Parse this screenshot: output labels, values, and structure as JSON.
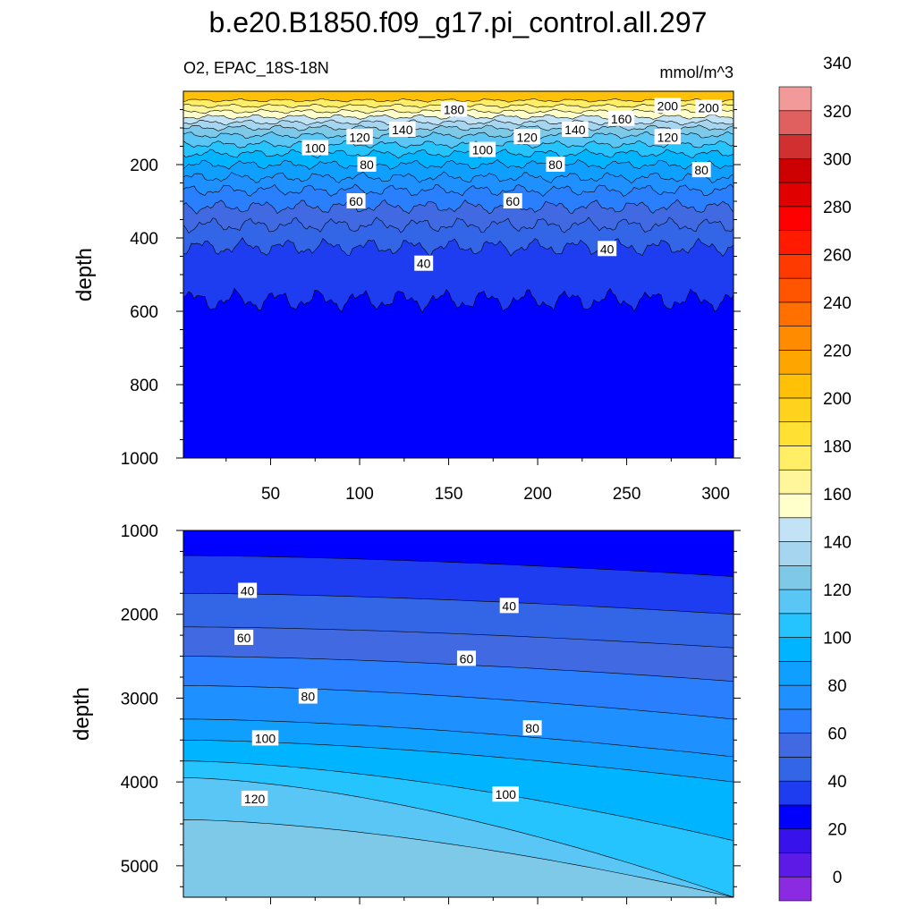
{
  "figure": {
    "title": "b.e20.B1850.f09_g17.pi_control.all.297",
    "left_string": "O2, EPAC_18S-18N",
    "right_string": "mmol/m^3"
  },
  "colorbar": {
    "colors": [
      "#8a2be2",
      "#5c1ae6",
      "#3712ea",
      "#0000ff",
      "#1e3cf0",
      "#3366e6",
      "#4169e1",
      "#2a7fff",
      "#1e90ff",
      "#0fa0ff",
      "#00b4ff",
      "#25c4ff",
      "#5ac6f5",
      "#7ec8e8",
      "#a6d6ef",
      "#c2e2f5",
      "#ffffcc",
      "#fff59a",
      "#ffee66",
      "#ffe033",
      "#ffd21e",
      "#ffc107",
      "#ffa500",
      "#ff8c00",
      "#ff7000",
      "#ff5500",
      "#ff3a00",
      "#ff1a00",
      "#ff0000",
      "#e00000",
      "#cc0000",
      "#d03030",
      "#e06060",
      "#f29a9a"
    ],
    "labels": [
      "0",
      "20",
      "40",
      "60",
      "80",
      "100",
      "120",
      "140",
      "160",
      "180",
      "200",
      "220",
      "240",
      "260",
      "280",
      "300",
      "320",
      "340"
    ]
  },
  "chart_data": [
    {
      "type": "heatmap",
      "panel": "upper",
      "ylabel": "depth",
      "xlim": [
        1,
        310
      ],
      "ylim": [
        1000,
        0
      ],
      "x_ticks": [
        "50",
        "100",
        "150",
        "200",
        "250",
        "300"
      ],
      "y_ticks": [
        "200",
        "400",
        "600",
        "800",
        "1000"
      ],
      "levels": [
        {
          "value": 180,
          "depth": 25
        },
        {
          "value": 170,
          "depth": 40
        },
        {
          "value": 160,
          "depth": 55
        },
        {
          "value": 150,
          "depth": 70
        },
        {
          "value": 140,
          "depth": 85
        },
        {
          "value": 130,
          "depth": 100
        },
        {
          "value": 120,
          "depth": 120
        },
        {
          "value": 110,
          "depth": 145
        },
        {
          "value": 100,
          "depth": 170
        },
        {
          "value": 90,
          "depth": 200
        },
        {
          "value": 80,
          "depth": 235
        },
        {
          "value": 70,
          "depth": 270
        },
        {
          "value": 60,
          "depth": 315
        },
        {
          "value": 50,
          "depth": 365
        },
        {
          "value": 40,
          "depth": 425
        },
        {
          "value": 30,
          "depth": 570
        }
      ],
      "contour_labels": [
        {
          "text": "200",
          "x": 273,
          "depth": 40
        },
        {
          "text": "200",
          "x": 296,
          "depth": 45
        },
        {
          "text": "180",
          "x": 153,
          "depth": 50
        },
        {
          "text": "160",
          "x": 247,
          "depth": 75
        },
        {
          "text": "140",
          "x": 124,
          "depth": 105
        },
        {
          "text": "140",
          "x": 221,
          "depth": 105
        },
        {
          "text": "120",
          "x": 100,
          "depth": 125
        },
        {
          "text": "120",
          "x": 194,
          "depth": 125
        },
        {
          "text": "120",
          "x": 273,
          "depth": 125
        },
        {
          "text": "100",
          "x": 75,
          "depth": 155
        },
        {
          "text": "100",
          "x": 169,
          "depth": 160
        },
        {
          "text": "80",
          "x": 104,
          "depth": 200
        },
        {
          "text": "80",
          "x": 210,
          "depth": 200
        },
        {
          "text": "80",
          "x": 292,
          "depth": 215
        },
        {
          "text": "60",
          "x": 98,
          "depth": 300
        },
        {
          "text": "60",
          "x": 186,
          "depth": 300
        },
        {
          "text": "40",
          "x": 136,
          "depth": 470
        },
        {
          "text": "40",
          "x": 239,
          "depth": 430
        }
      ]
    },
    {
      "type": "heatmap",
      "panel": "lower",
      "ylabel": "depth",
      "xlim": [
        1,
        310
      ],
      "ylim": [
        1000,
        5375
      ],
      "y_ticks": [
        "1000",
        "2000",
        "3000",
        "4000",
        "5000"
      ],
      "levels": [
        {
          "value": 30,
          "depth_left": 1300,
          "depth_right": 1550
        },
        {
          "value": 40,
          "depth_left": 1750,
          "depth_right": 2000
        },
        {
          "value": 50,
          "depth_left": 2150,
          "depth_right": 2400
        },
        {
          "value": 60,
          "depth_left": 2500,
          "depth_right": 2800
        },
        {
          "value": 70,
          "depth_left": 2850,
          "depth_right": 3250
        },
        {
          "value": 80,
          "depth_left": 3250,
          "depth_right": 3700
        },
        {
          "value": 90,
          "depth_left": 3500,
          "depth_right": 4000
        },
        {
          "value": 100,
          "depth_left": 3750,
          "depth_right": 4700
        },
        {
          "value": 110,
          "depth_left": 3950,
          "depth_right": 5375
        },
        {
          "value": 120,
          "depth_left": 4450,
          "depth_right": 5375
        }
      ],
      "contour_labels": [
        {
          "text": "40",
          "x": 37,
          "depth": 1720
        },
        {
          "text": "40",
          "x": 184,
          "depth": 1900
        },
        {
          "text": "60",
          "x": 35,
          "depth": 2280
        },
        {
          "text": "60",
          "x": 160,
          "depth": 2530
        },
        {
          "text": "80",
          "x": 71,
          "depth": 2980
        },
        {
          "text": "80",
          "x": 197,
          "depth": 3360
        },
        {
          "text": "100",
          "x": 47,
          "depth": 3480
        },
        {
          "text": "100",
          "x": 182,
          "depth": 4150
        },
        {
          "text": "120",
          "x": 41,
          "depth": 4200
        }
      ]
    }
  ]
}
